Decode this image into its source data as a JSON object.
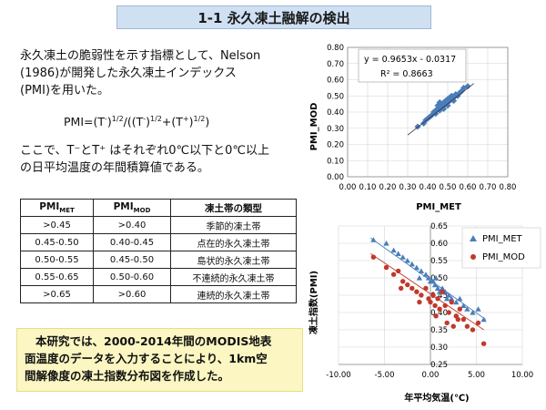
{
  "title": "1-1  永久凍土融解の検出",
  "intro_line1": "永久凍土の脆弱性を示す指標として、Nelson",
  "intro_line2": "(1986)が開発した永久凍土インデックス",
  "intro_line3": "(PMI)を用いた。",
  "formula": {
    "lhs": "PMI=(T",
    "sup_minus": "-",
    "sup_half": "1/2",
    "mid": "/((T",
    "sup_plus": "+",
    "plus": "+(T",
    "close": ")",
    "end": ")"
  },
  "desc_line1": "ここで、T⁻とT⁺ はそれぞれ0℃以下と0℃以上",
  "desc_line2": "の日平均温度の年間積算値である。",
  "table": {
    "headers": [
      "PMI",
      "PMI",
      "凍土帯の類型"
    ],
    "header_subs": [
      "MET",
      "MOD",
      ""
    ],
    "rows": [
      [
        ">0.45",
        ">0.40",
        "季節的凍土帯"
      ],
      [
        "0.45-0.50",
        "0.40-0.45",
        "点在的永久凍土帯"
      ],
      [
        "0.50-0.55",
        "0.45-0.50",
        "島状的永久凍土帯"
      ],
      [
        "0.55-0.65",
        "0.50-0.60",
        "不連続的永久凍土帯"
      ],
      [
        ">0.65",
        ">0.60",
        "連続的永久凍土帯"
      ]
    ]
  },
  "summary": {
    "line1": "本研究では、2000-2014年間のMODIS地表",
    "line2": "面温度のデータを入力することにより、1km空",
    "line3": "間解像度の凍土指数分布図を作成した。"
  },
  "colors": {
    "met": "#4a7ebb",
    "mod": "#c0392b",
    "title_bg": "#cfe0f3",
    "summary_bg": "#fbf6c2"
  },
  "chart_data": [
    {
      "type": "scatter",
      "title": "",
      "xlabel": "PMI_MET",
      "ylabel": "PMI_MOD",
      "xlim": [
        0,
        0.8
      ],
      "ylim": [
        0,
        0.8
      ],
      "xticks": [
        "0.00",
        "0.10",
        "0.20",
        "0.30",
        "0.40",
        "0.50",
        "0.60",
        "0.70",
        "0.80"
      ],
      "yticks": [
        "0.00",
        "0.10",
        "0.20",
        "0.30",
        "0.40",
        "0.50",
        "0.60",
        "0.70",
        "0.80"
      ],
      "equation": "y = 0.9653x - 0.0317",
      "r2": "R² = 0.8663",
      "trend": {
        "slope": 0.9653,
        "intercept": -0.0317,
        "x_range": [
          0.3,
          0.63
        ]
      },
      "grid": true,
      "points": [
        [
          0.35,
          0.31
        ],
        [
          0.38,
          0.33
        ],
        [
          0.39,
          0.35
        ],
        [
          0.4,
          0.36
        ],
        [
          0.41,
          0.37
        ],
        [
          0.42,
          0.38
        ],
        [
          0.43,
          0.4
        ],
        [
          0.44,
          0.41
        ],
        [
          0.44,
          0.39
        ],
        [
          0.45,
          0.42
        ],
        [
          0.45,
          0.44
        ],
        [
          0.46,
          0.43
        ],
        [
          0.46,
          0.41
        ],
        [
          0.47,
          0.45
        ],
        [
          0.47,
          0.43
        ],
        [
          0.48,
          0.44
        ],
        [
          0.48,
          0.46
        ],
        [
          0.49,
          0.45
        ],
        [
          0.49,
          0.47
        ],
        [
          0.5,
          0.46
        ],
        [
          0.5,
          0.48
        ],
        [
          0.51,
          0.47
        ],
        [
          0.51,
          0.49
        ],
        [
          0.52,
          0.5
        ],
        [
          0.52,
          0.48
        ],
        [
          0.53,
          0.49
        ],
        [
          0.54,
          0.51
        ],
        [
          0.55,
          0.5
        ],
        [
          0.56,
          0.52
        ],
        [
          0.57,
          0.53
        ],
        [
          0.58,
          0.55
        ],
        [
          0.6,
          0.56
        ],
        [
          0.46,
          0.46
        ],
        [
          0.48,
          0.42
        ],
        [
          0.5,
          0.44
        ],
        [
          0.53,
          0.47
        ]
      ]
    },
    {
      "type": "scatter",
      "title": "",
      "xlabel": "年平均気温(℃)",
      "ylabel": "凍土指数(PMI)",
      "xlim": [
        -10,
        10
      ],
      "ylim": [
        0.25,
        0.65
      ],
      "xticks": [
        "-10.00",
        "-5.00",
        "0.00",
        "5.00",
        "10.00"
      ],
      "yticks": [
        "0.25",
        "0.30",
        "0.35",
        "0.40",
        "0.45",
        "0.50",
        "0.55",
        "0.60",
        "0.65"
      ],
      "legend_position": "top-right",
      "grid": true,
      "series": [
        {
          "name": "PMI_MET",
          "marker": "triangle",
          "trend": {
            "x_range": [
              -6.5,
              6.0
            ],
            "y_range": [
              0.615,
              0.38
            ]
          },
          "points": [
            [
              -6.2,
              0.61
            ],
            [
              -4.8,
              0.6
            ],
            [
              -4.0,
              0.58
            ],
            [
              -3.5,
              0.57
            ],
            [
              -3.0,
              0.56
            ],
            [
              -2.5,
              0.55
            ],
            [
              -2.0,
              0.54
            ],
            [
              -1.5,
              0.53
            ],
            [
              -1.0,
              0.52
            ],
            [
              -0.5,
              0.51
            ],
            [
              -0.2,
              0.5
            ],
            [
              0.0,
              0.49
            ],
            [
              0.3,
              0.49
            ],
            [
              0.5,
              0.48
            ],
            [
              0.8,
              0.47
            ],
            [
              1.0,
              0.46
            ],
            [
              1.3,
              0.47
            ],
            [
              1.6,
              0.46
            ],
            [
              2.0,
              0.45
            ],
            [
              2.3,
              0.44
            ],
            [
              2.8,
              0.43
            ],
            [
              3.2,
              0.44
            ],
            [
              3.6,
              0.42
            ],
            [
              4.0,
              0.41
            ],
            [
              4.6,
              0.4
            ],
            [
              5.2,
              0.41
            ],
            [
              5.8,
              0.38
            ],
            [
              -1.2,
              0.5
            ],
            [
              0.6,
              0.5
            ],
            [
              1.8,
              0.44
            ]
          ]
        },
        {
          "name": "PMI_MOD",
          "marker": "circle",
          "trend": {
            "x_range": [
              -6.5,
              5.8
            ],
            "y_range": [
              0.57,
              0.35
            ]
          },
          "points": [
            [
              -6.2,
              0.56
            ],
            [
              -4.8,
              0.53
            ],
            [
              -4.0,
              0.51
            ],
            [
              -3.5,
              0.52
            ],
            [
              -3.0,
              0.49
            ],
            [
              -2.5,
              0.48
            ],
            [
              -2.0,
              0.47
            ],
            [
              -1.5,
              0.46
            ],
            [
              -1.0,
              0.45
            ],
            [
              -0.5,
              0.47
            ],
            [
              -0.2,
              0.44
            ],
            [
              0.0,
              0.43
            ],
            [
              0.3,
              0.45
            ],
            [
              0.5,
              0.42
            ],
            [
              0.8,
              0.44
            ],
            [
              1.0,
              0.41
            ],
            [
              1.3,
              0.46
            ],
            [
              1.6,
              0.42
            ],
            [
              2.0,
              0.4
            ],
            [
              2.3,
              0.43
            ],
            [
              2.8,
              0.39
            ],
            [
              3.2,
              0.41
            ],
            [
              3.6,
              0.38
            ],
            [
              4.0,
              0.36
            ],
            [
              4.6,
              0.35
            ],
            [
              5.2,
              0.37
            ],
            [
              5.8,
              0.31
            ],
            [
              -1.2,
              0.43
            ],
            [
              0.6,
              0.39
            ],
            [
              1.8,
              0.37
            ],
            [
              2.5,
              0.36
            ],
            [
              -3.2,
              0.47
            ],
            [
              3.0,
              0.38
            ]
          ]
        }
      ]
    }
  ]
}
